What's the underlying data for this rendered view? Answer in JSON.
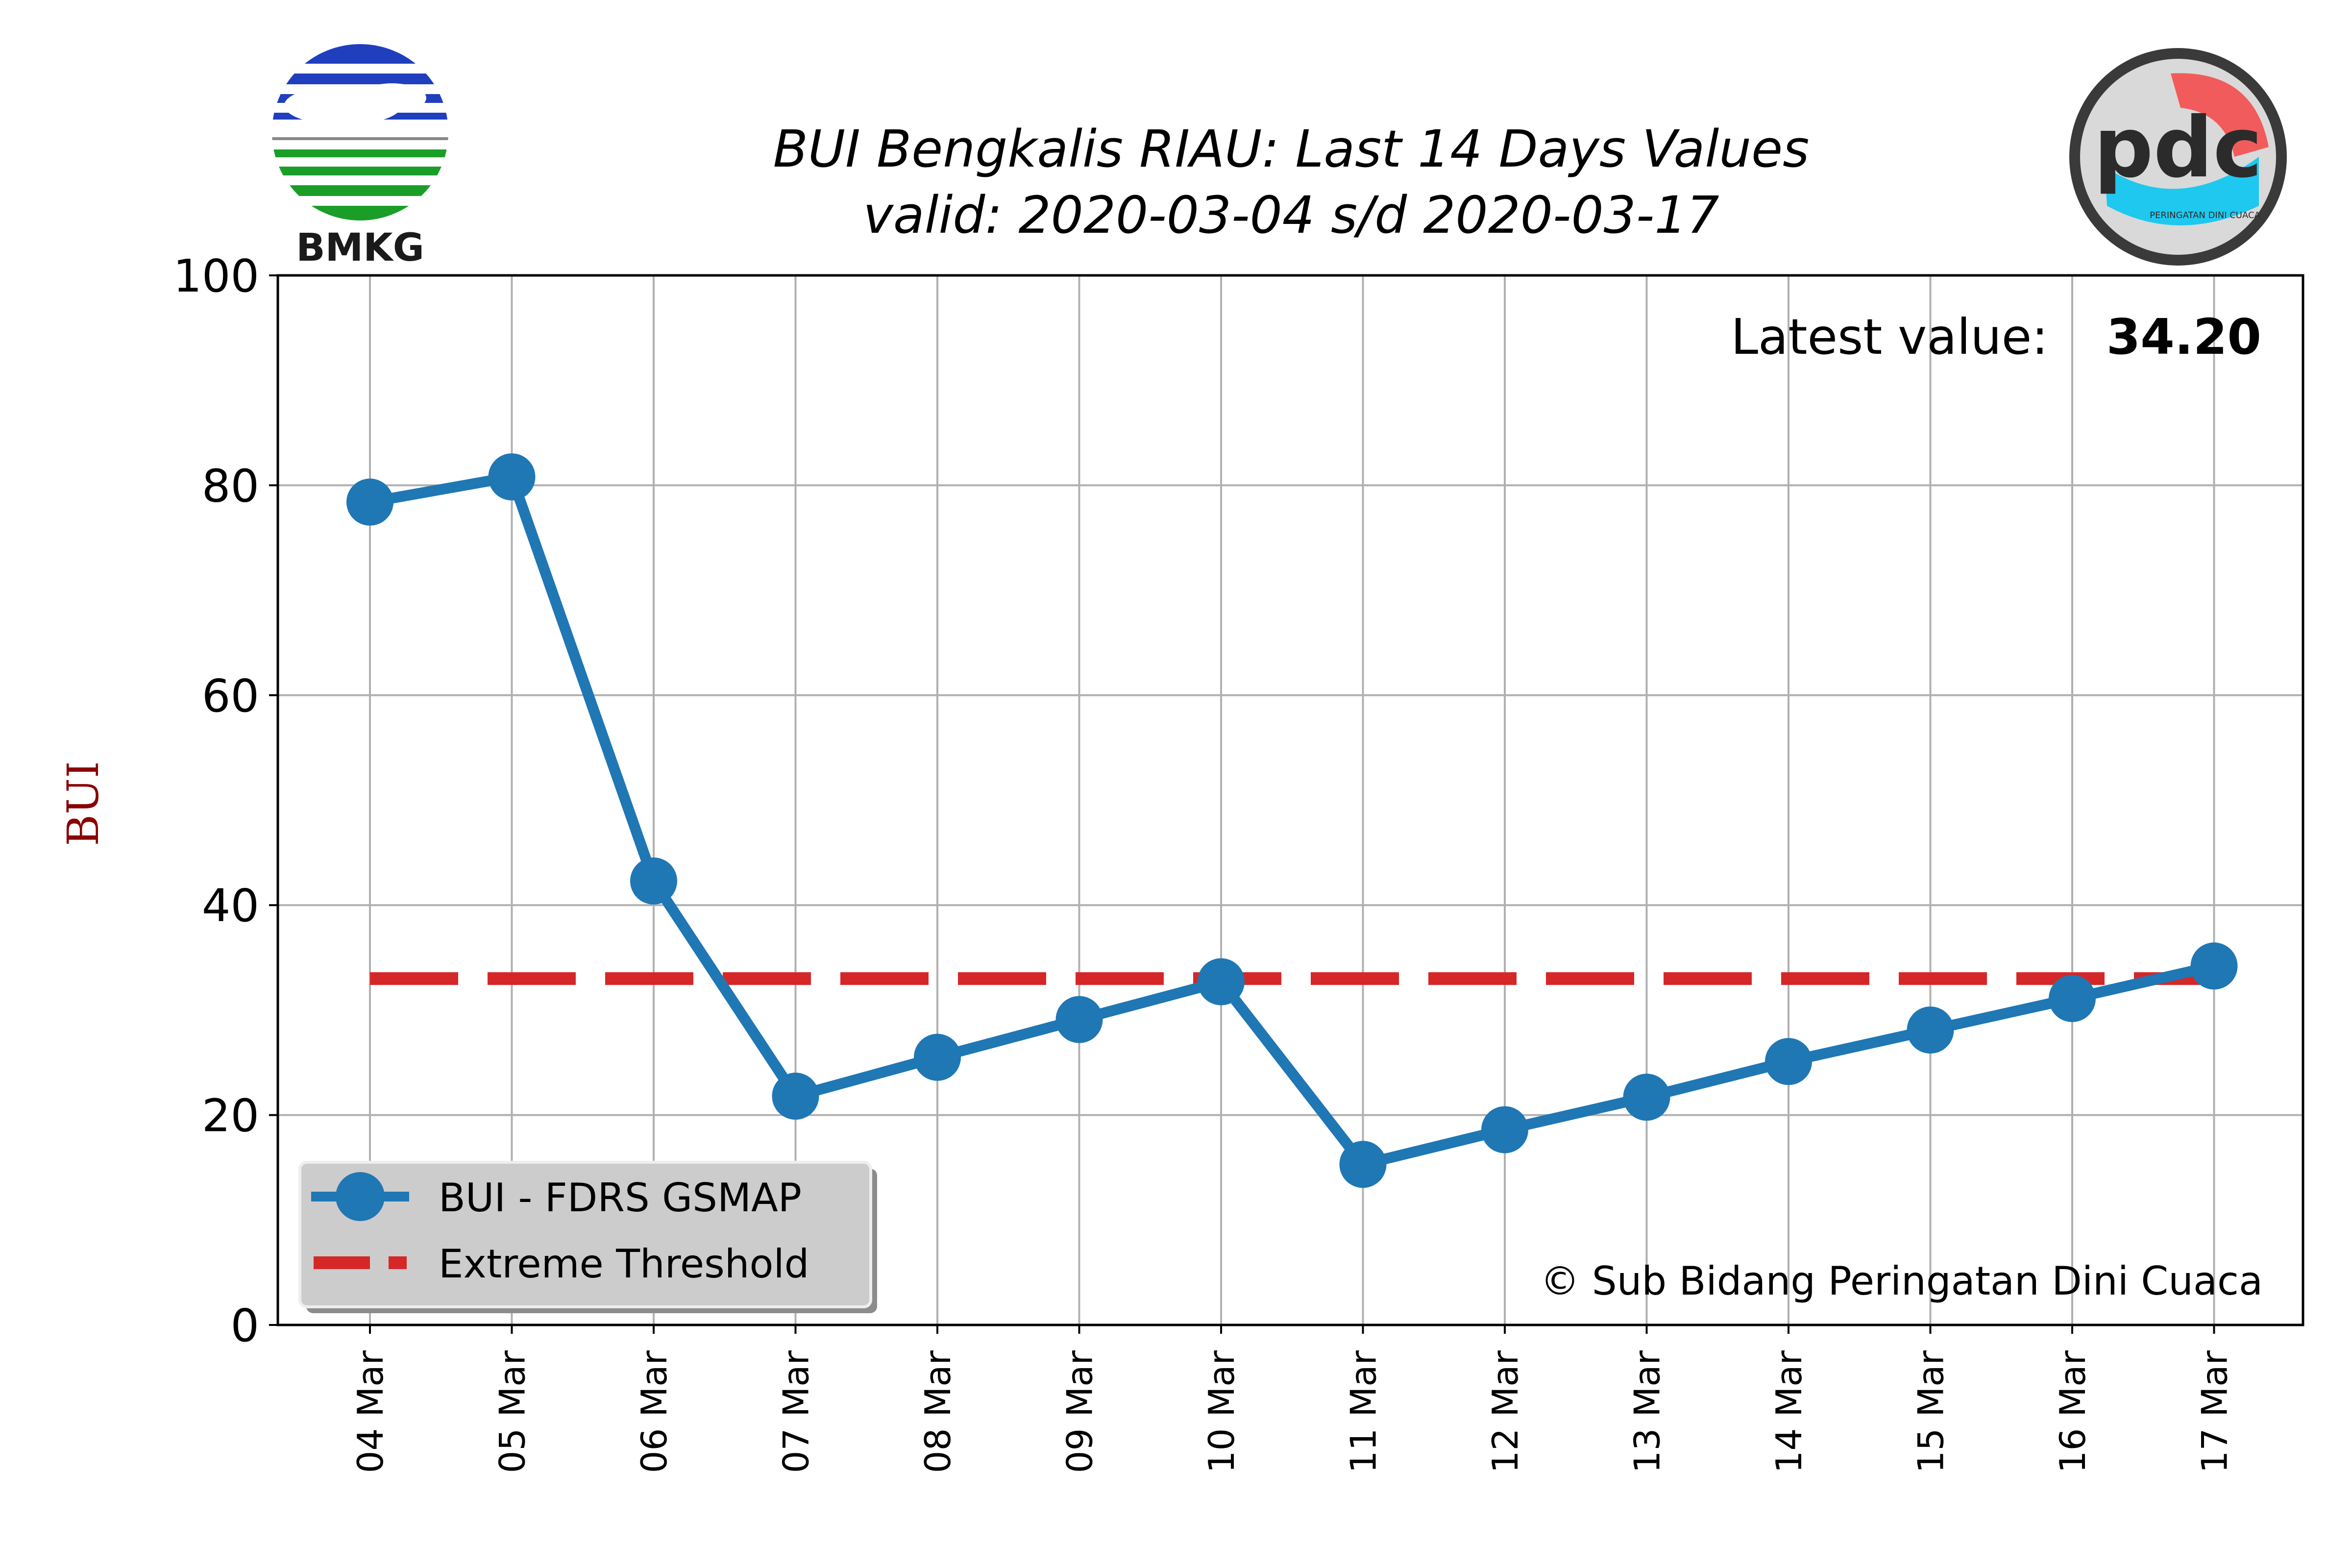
{
  "header": {
    "logo_left_text": "BMKG",
    "logo_right_text": "pdc",
    "logo_right_subtext": "PERINGATAN DINI CUACA"
  },
  "chart_data": {
    "type": "line",
    "title": "BUI Bengkalis RIAU: Last 14 Days Values",
    "subtitle": "valid: 2020-03-04 s/d 2020-03-17",
    "xlabel": "",
    "ylabel": "BUI",
    "ylim": [
      0,
      100
    ],
    "yticks": [
      0,
      20,
      40,
      60,
      80,
      100
    ],
    "categories": [
      "04 Mar",
      "05 Mar",
      "06 Mar",
      "07 Mar",
      "08 Mar",
      "09 Mar",
      "10 Mar",
      "11 Mar",
      "12 Mar",
      "13 Mar",
      "14 Mar",
      "15 Mar",
      "16 Mar",
      "17 Mar"
    ],
    "series": [
      {
        "name": "BUI - FDRS GSMAP",
        "color": "#1f77b4",
        "values": [
          78.4,
          80.8,
          42.3,
          21.8,
          25.5,
          29.1,
          32.7,
          15.3,
          18.6,
          21.7,
          25.1,
          28.1,
          31.1,
          34.2
        ]
      },
      {
        "name": "Extreme Threshold",
        "color": "#d62728",
        "style": "dashed",
        "values": [
          33,
          33,
          33,
          33,
          33,
          33,
          33,
          33,
          33,
          33,
          33,
          33,
          33,
          33
        ]
      }
    ],
    "grid": true,
    "legend_position": "lower-left",
    "annotations": {
      "latest_label": "Latest value:",
      "latest_value": "34.20",
      "copyright": "© Sub Bidang Peringatan Dini Cuaca"
    },
    "colors": {
      "ylabel": "#8b0000",
      "grid": "#b0b0b0"
    }
  }
}
